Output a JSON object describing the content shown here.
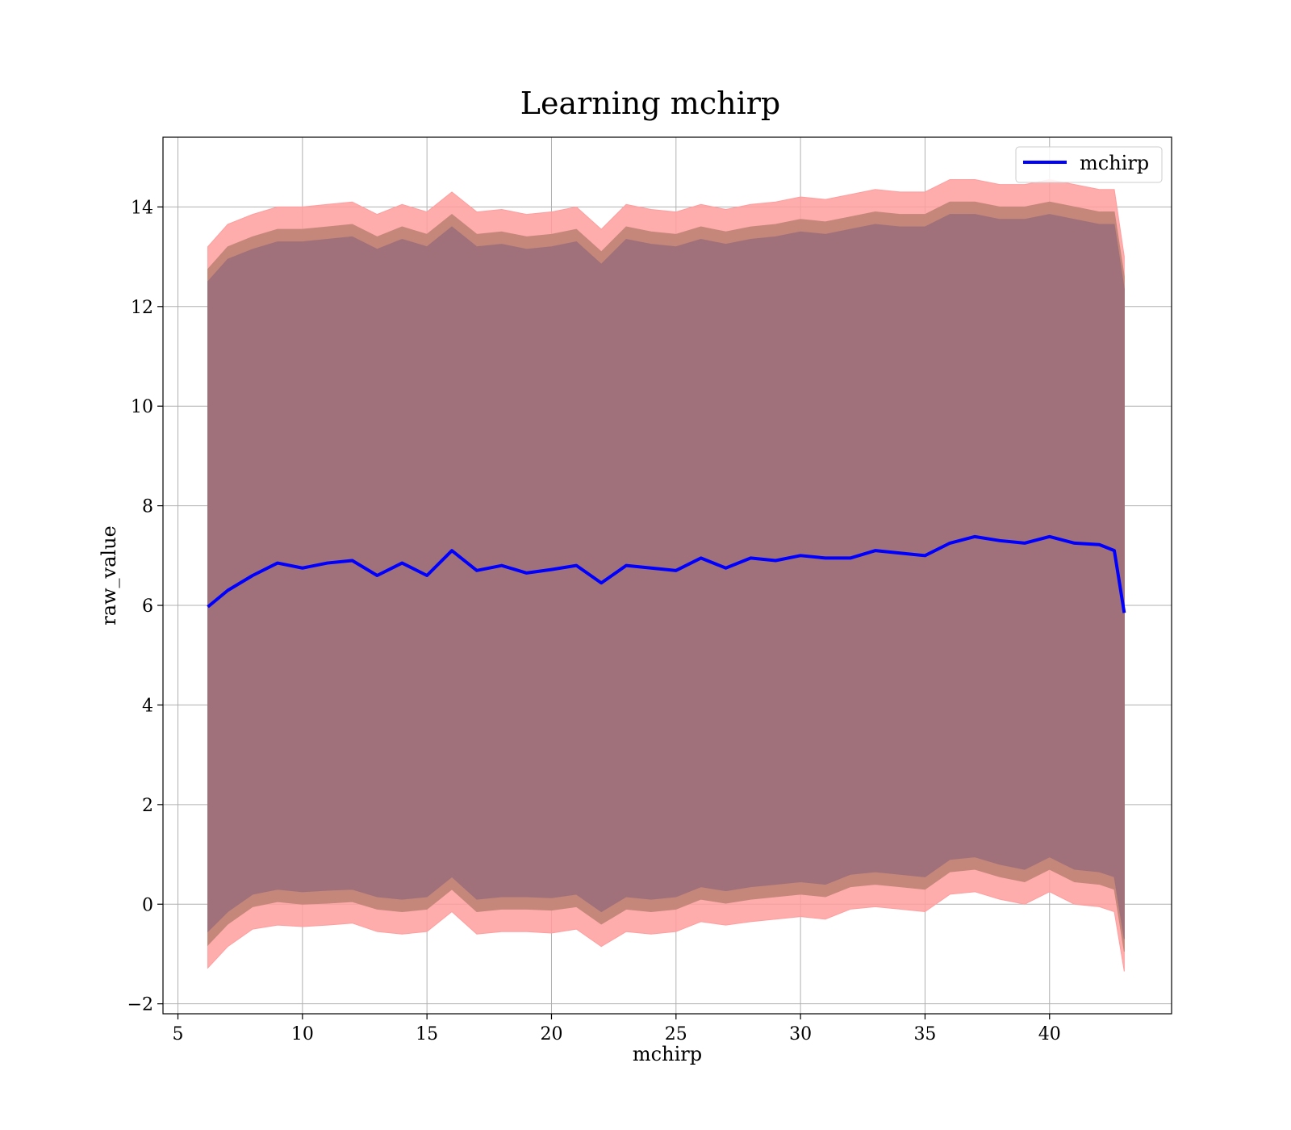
{
  "chart_data": {
    "type": "area",
    "title": "Learning mchirp",
    "xlabel": "mchirp",
    "ylabel": "raw_value",
    "xlim": [
      4.4,
      44.9
    ],
    "ylim": [
      -2.2,
      15.4
    ],
    "xticks": [
      5,
      10,
      15,
      20,
      25,
      30,
      35,
      40
    ],
    "yticks": [
      -2,
      0,
      2,
      4,
      6,
      8,
      10,
      12,
      14
    ],
    "ytick_labels": [
      "−2",
      "0",
      "2",
      "4",
      "6",
      "8",
      "10",
      "12",
      "14"
    ],
    "grid": true,
    "legend": {
      "placement": "top-right",
      "entries": [
        "mchirp"
      ]
    },
    "colors": {
      "mean_line": "#0000ff",
      "outer_band": "#ff9e9e",
      "middle_band": "#c4877a",
      "inner_band": "#a0717a"
    },
    "x": [
      6.2,
      7,
      8,
      9,
      10,
      11,
      12,
      13,
      14,
      15,
      16,
      17,
      18,
      19,
      20,
      21,
      22,
      23,
      24,
      25,
      26,
      27,
      28,
      29,
      30,
      31,
      32,
      33,
      34,
      35,
      36,
      37,
      38,
      39,
      40,
      41,
      42,
      42.6,
      43.0
    ],
    "series": [
      {
        "name": "mchirp",
        "values": [
          5.97,
          6.3,
          6.6,
          6.85,
          6.75,
          6.85,
          6.9,
          6.6,
          6.85,
          6.6,
          7.1,
          6.7,
          6.8,
          6.65,
          6.72,
          6.8,
          6.45,
          6.8,
          6.75,
          6.7,
          6.95,
          6.75,
          6.95,
          6.9,
          7.0,
          6.95,
          6.95,
          7.1,
          7.05,
          7.0,
          7.25,
          7.38,
          7.3,
          7.25,
          7.38,
          7.25,
          7.22,
          7.1,
          5.85
        ]
      }
    ],
    "bands": [
      {
        "lower": [
          -1.28,
          -0.85,
          -0.5,
          -0.42,
          -0.45,
          -0.42,
          -0.38,
          -0.55,
          -0.6,
          -0.55,
          -0.15,
          -0.6,
          -0.55,
          -0.55,
          -0.58,
          -0.5,
          -0.85,
          -0.55,
          -0.6,
          -0.55,
          -0.35,
          -0.42,
          -0.35,
          -0.3,
          -0.25,
          -0.3,
          -0.1,
          -0.05,
          -0.1,
          -0.15,
          0.2,
          0.25,
          0.1,
          0.0,
          0.25,
          0.0,
          -0.05,
          -0.15,
          -1.35
        ],
        "upper": [
          13.2,
          13.65,
          13.85,
          14.0,
          14.0,
          14.05,
          14.1,
          13.85,
          14.05,
          13.9,
          14.3,
          13.9,
          13.95,
          13.85,
          13.9,
          14.0,
          13.55,
          14.05,
          13.95,
          13.9,
          14.05,
          13.95,
          14.05,
          14.1,
          14.2,
          14.15,
          14.25,
          14.35,
          14.3,
          14.3,
          14.55,
          14.55,
          14.45,
          14.45,
          14.55,
          14.45,
          14.35,
          14.35,
          13.0
        ]
      },
      {
        "lower": [
          -0.82,
          -0.4,
          -0.05,
          0.05,
          0.0,
          0.02,
          0.05,
          -0.1,
          -0.15,
          -0.1,
          0.3,
          -0.15,
          -0.1,
          -0.1,
          -0.12,
          -0.05,
          -0.4,
          -0.1,
          -0.15,
          -0.1,
          0.1,
          0.02,
          0.1,
          0.15,
          0.2,
          0.15,
          0.35,
          0.4,
          0.35,
          0.3,
          0.65,
          0.7,
          0.55,
          0.45,
          0.7,
          0.45,
          0.4,
          0.3,
          -0.95
        ],
        "upper": [
          12.75,
          13.2,
          13.4,
          13.55,
          13.55,
          13.6,
          13.65,
          13.4,
          13.6,
          13.45,
          13.85,
          13.45,
          13.5,
          13.4,
          13.45,
          13.55,
          13.1,
          13.6,
          13.5,
          13.45,
          13.6,
          13.5,
          13.6,
          13.65,
          13.75,
          13.7,
          13.8,
          13.9,
          13.85,
          13.85,
          14.1,
          14.1,
          14.0,
          14.0,
          14.1,
          14.0,
          13.9,
          13.9,
          12.6
        ]
      },
      {
        "lower": [
          -0.55,
          -0.15,
          0.2,
          0.3,
          0.25,
          0.28,
          0.3,
          0.15,
          0.1,
          0.15,
          0.55,
          0.1,
          0.15,
          0.15,
          0.13,
          0.2,
          -0.15,
          0.15,
          0.1,
          0.15,
          0.35,
          0.27,
          0.35,
          0.4,
          0.45,
          0.4,
          0.6,
          0.65,
          0.6,
          0.55,
          0.9,
          0.95,
          0.8,
          0.7,
          0.95,
          0.7,
          0.65,
          0.55,
          -0.7
        ],
        "upper": [
          12.5,
          12.95,
          13.15,
          13.3,
          13.3,
          13.35,
          13.4,
          13.15,
          13.35,
          13.2,
          13.6,
          13.2,
          13.25,
          13.15,
          13.2,
          13.3,
          12.85,
          13.35,
          13.25,
          13.2,
          13.35,
          13.25,
          13.35,
          13.4,
          13.5,
          13.45,
          13.55,
          13.65,
          13.6,
          13.6,
          13.85,
          13.85,
          13.75,
          13.75,
          13.85,
          13.75,
          13.65,
          13.65,
          12.35
        ]
      }
    ]
  }
}
